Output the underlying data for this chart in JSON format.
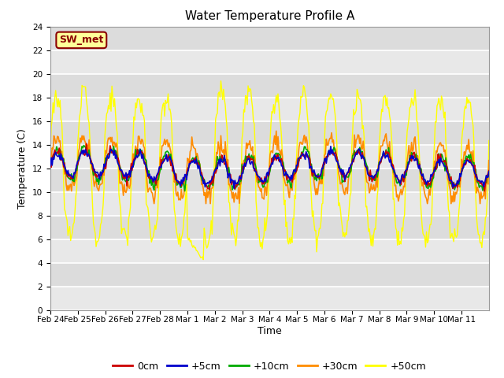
{
  "title": "Water Temperature Profile A",
  "xlabel": "Time",
  "ylabel": "Temperature (C)",
  "ylim": [
    0,
    24
  ],
  "yticks": [
    0,
    2,
    4,
    6,
    8,
    10,
    12,
    14,
    16,
    18,
    20,
    22,
    24
  ],
  "x_labels": [
    "Feb 24",
    "Feb 25",
    "Feb 26",
    "Feb 27",
    "Feb 28",
    "Mar 1",
    "Mar 2",
    "Mar 3",
    "Mar 4",
    "Mar 5",
    "Mar 6",
    "Mar 7",
    "Mar 8",
    "Mar 9",
    "Mar 10",
    "Mar 11"
  ],
  "annotation_text": "SW_met",
  "annotation_color": "#8B0000",
  "annotation_bg": "#FFFF99",
  "annotation_border": "#8B0000",
  "colors": {
    "0cm": "#CC0000",
    "+5cm": "#0000CC",
    "+10cm": "#00AA00",
    "+30cm": "#FF8C00",
    "+50cm": "#FFFF00"
  },
  "legend_labels": [
    "0cm",
    "+5cm",
    "+10cm",
    "+30cm",
    "+50cm"
  ],
  "bg_color": "#DCDCDC",
  "grid_color": "#FFFFFF",
  "n_points": 500,
  "base_temp": 12.0,
  "figsize": [
    6.4,
    4.8
  ],
  "dpi": 100
}
